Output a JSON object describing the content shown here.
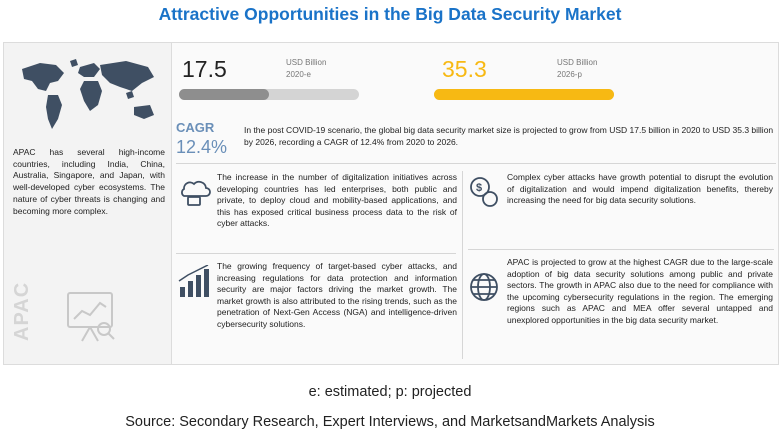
{
  "title": "Attractive Opportunities in the Big Data Security Market",
  "apac": {
    "description": "APAC has several high-income countries, including India, China, Australia, Singapore, and Japan, with well-developed cyber ecosystems. The nature of cyber threats is changing and becoming more complex.",
    "label": "APAC"
  },
  "metrics": [
    {
      "value": "17.5",
      "unit": "USD Billion",
      "year": "2020-e",
      "bar_fraction": 0.5,
      "color": "#8e8e8e"
    },
    {
      "value": "35.3",
      "unit": "USD Billion",
      "year": "2026-p",
      "bar_fraction": 1.0,
      "color": "#f7b913"
    }
  ],
  "cagr": {
    "label": "CAGR",
    "value": "12.4%",
    "text": "In the post COVID-19 scenario, the global big data security market size is projected to grow from USD 17.5 billion in 2020 to USD 35.3 billion by 2026, recording a CAGR of 12.4% from 2020 to 2026."
  },
  "blocks": [
    {
      "icon": "cloud-device-icon",
      "text": "The increase in the number of digitalization initiatives across developing countries has led enterprises, both public and private, to deploy cloud and mobility-based applications, and this has exposed critical business process data to the risk of cyber attacks."
    },
    {
      "icon": "bar-chart-icon",
      "text": "The growing frequency of target-based cyber attacks, and increasing regulations for data protection and information security are major factors driving the market growth. The market growth is also attributed to the rising trends, such as the penetration of Next-Gen Access (NGA) and intelligence-driven cybersecurity solutions."
    },
    {
      "icon": "dollar-gear-icon",
      "text": "Complex cyber attacks have growth potential to disrupt the evolution of digitalization and would impend digitalization benefits, thereby increasing the need for big data security solutions."
    },
    {
      "icon": "globe-icon",
      "text": "APAC is projected to grow at the highest CAGR due to the large-scale adoption of big data security solutions among public and private sectors. The growth in APAC also due to the need for compliance with the upcoming cybersecurity regulations in the region. The emerging regions such as APAC and MEA offer several untapped and unexplored opportunities in the big data security market."
    }
  ],
  "note": "e: estimated; p: projected",
  "source": "Source: Secondary Research, Expert Interviews, and MarketsandMarkets Analysis"
}
